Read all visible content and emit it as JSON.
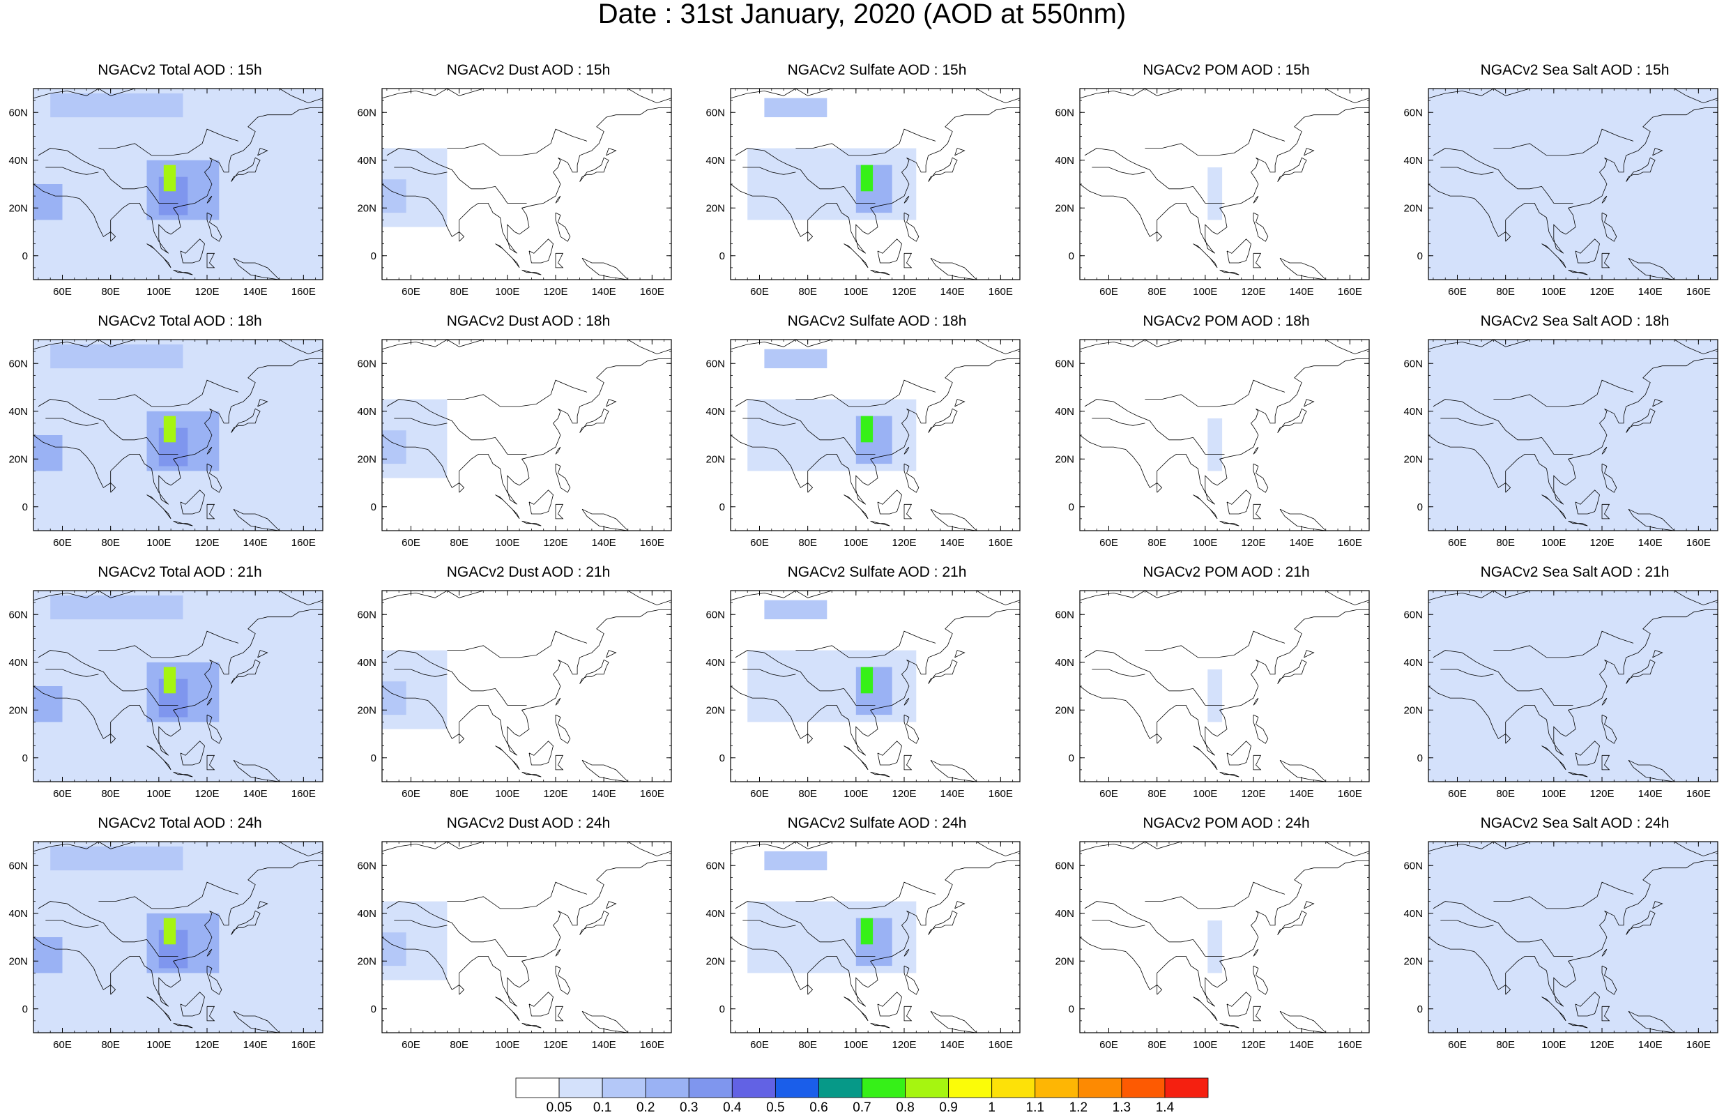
{
  "title": "Date : 31st January, 2020 (AOD at 550nm)",
  "panel_titles": [
    [
      "NGACv2 Total AOD : 15h",
      "NGACv2 Dust AOD : 15h",
      "NGACv2 Sulfate AOD : 15h",
      "NGACv2 POM AOD : 15h",
      "NGACv2 Sea Salt AOD : 15h"
    ],
    [
      "NGACv2 Total AOD : 18h",
      "NGACv2 Dust AOD : 18h",
      "NGACv2 Sulfate AOD : 18h",
      "NGACv2 POM AOD : 18h",
      "NGACv2 Sea Salt AOD : 18h"
    ],
    [
      "NGACv2 Total AOD : 21h",
      "NGACv2 Dust AOD : 21h",
      "NGACv2 Sulfate AOD : 21h",
      "NGACv2 POM AOD : 21h",
      "NGACv2 Sea Salt AOD : 21h"
    ],
    [
      "NGACv2 Total AOD : 24h",
      "NGACv2 Dust AOD : 24h",
      "NGACv2 Sulfate AOD : 24h",
      "NGACv2 POM AOD : 24h",
      "NGACv2 Sea Salt  AOD : 24h"
    ]
  ],
  "map": {
    "lon_range": [
      48,
      168
    ],
    "lat_range": [
      -10,
      70
    ],
    "lon_ticks": [
      60,
      80,
      100,
      120,
      140,
      160
    ],
    "lon_tick_labels": [
      "60E",
      "80E",
      "100E",
      "120E",
      "140E",
      "160E"
    ],
    "lat_ticks": [
      0,
      20,
      40,
      60
    ],
    "lat_tick_labels": [
      "0",
      "20N",
      "40N",
      "60N"
    ]
  },
  "colorbar": {
    "labels": [
      "0.05",
      "0.1",
      "0.2",
      "0.3",
      "0.4",
      "0.5",
      "0.6",
      "0.7",
      "0.8",
      "0.9",
      "1",
      "1.1",
      "1.2",
      "1.3",
      "1.4"
    ],
    "colors": [
      "#ffffff",
      "#d4e1fb",
      "#b4c8f8",
      "#9ab2f4",
      "#7f96ee",
      "#6262e4",
      "#1a5eea",
      "#069988",
      "#36f018",
      "#a6f510",
      "#fbfc08",
      "#fde108",
      "#feb604",
      "#fd8a02",
      "#fd5a02",
      "#f52010"
    ]
  },
  "chart_data": {
    "type": "heatmap",
    "variable": "AOD at 550nm",
    "date": "31st January, 2020",
    "rows_hours": [
      "15h",
      "18h",
      "21h",
      "24h"
    ],
    "columns_species": [
      "Total",
      "Dust",
      "Sulfate",
      "POM",
      "Sea Salt"
    ],
    "level_bounds": [
      0.05,
      0.1,
      0.2,
      0.3,
      0.4,
      0.5,
      0.6,
      0.7,
      0.8,
      0.9,
      1,
      1.1,
      1.2,
      1.3,
      1.4
    ],
    "features": {
      "Total": [
        {
          "lon": [
            48,
            168
          ],
          "lat": [
            -10,
            70
          ],
          "level": 0.05
        },
        {
          "lon": [
            55,
            110
          ],
          "lat": [
            58,
            68
          ],
          "level": 0.1
        },
        {
          "lon": [
            95,
            125
          ],
          "lat": [
            15,
            40
          ],
          "level": 0.2
        },
        {
          "lon": [
            48,
            60
          ],
          "lat": [
            15,
            30
          ],
          "level": 0.2
        },
        {
          "lon": [
            100,
            112
          ],
          "lat": [
            17,
            33
          ],
          "level": 0.3
        },
        {
          "lon": [
            102,
            107
          ],
          "lat": [
            27,
            38
          ],
          "level": 0.8
        }
      ],
      "Dust": [
        {
          "lon": [
            48,
            75
          ],
          "lat": [
            12,
            45
          ],
          "level": 0.05
        },
        {
          "lon": [
            48,
            58
          ],
          "lat": [
            18,
            32
          ],
          "level": 0.1
        }
      ],
      "Sulfate": [
        {
          "lon": [
            62,
            88
          ],
          "lat": [
            58,
            66
          ],
          "level": 0.1
        },
        {
          "lon": [
            55,
            125
          ],
          "lat": [
            15,
            45
          ],
          "level": 0.05
        },
        {
          "lon": [
            100,
            115
          ],
          "lat": [
            18,
            38
          ],
          "level": 0.2
        },
        {
          "lon": [
            102,
            107
          ],
          "lat": [
            27,
            38
          ],
          "level": 0.7
        }
      ],
      "POM": [
        {
          "lon": [
            101,
            107
          ],
          "lat": [
            15,
            37
          ],
          "level": 0.05
        }
      ],
      "Sea Salt": [
        {
          "lon": [
            48,
            168
          ],
          "lat": [
            -10,
            70
          ],
          "level": 0.05
        }
      ]
    }
  }
}
